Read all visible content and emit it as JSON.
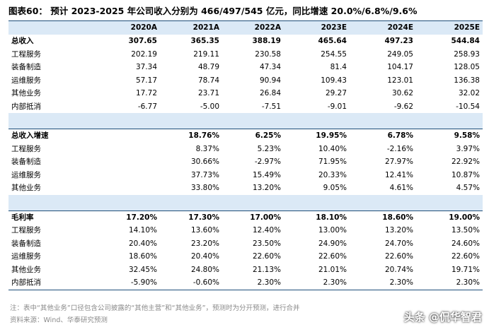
{
  "title": "图表60：  预计 2023-2025 年公司收入分别为 466/497/545 亿元，同比增速 20.0%/6.8%/9.6%",
  "columns": [
    "2020A",
    "2021A",
    "2022A",
    "2023E",
    "2024E",
    "2025E"
  ],
  "revenue": [
    {
      "label": "总收入",
      "bold": true,
      "values": [
        "307.65",
        "365.35",
        "388.19",
        "465.64",
        "497.23",
        "544.84"
      ]
    },
    {
      "label": "工程服务",
      "values": [
        "202.19",
        "219.11",
        "230.58",
        "254.55",
        "249.05",
        "258.93"
      ]
    },
    {
      "label": "装备制造",
      "values": [
        "37.34",
        "48.79",
        "47.34",
        "81.4",
        "104.17",
        "128.05"
      ]
    },
    {
      "label": "运维服务",
      "values": [
        "57.17",
        "78.74",
        "90.94",
        "109.43",
        "123.01",
        "136.38"
      ]
    },
    {
      "label": "其他业务",
      "values": [
        "17.72",
        "23.71",
        "26.84",
        "29.27",
        "30.62",
        "32.02"
      ]
    },
    {
      "label": "内部抵消",
      "values": [
        "-6.77",
        "-5.00",
        "-7.51",
        "-9.01",
        "-9.62",
        "-10.54"
      ]
    }
  ],
  "growth": [
    {
      "label": "总收入增速",
      "bold": true,
      "values": [
        "",
        "18.76%",
        "6.25%",
        "19.95%",
        "6.78%",
        "9.58%"
      ]
    },
    {
      "label": "工程服务",
      "values": [
        "",
        "8.37%",
        "5.23%",
        "10.40%",
        "-2.16%",
        "3.97%"
      ]
    },
    {
      "label": "装备制造",
      "values": [
        "",
        "30.66%",
        "-2.97%",
        "71.95%",
        "27.97%",
        "22.92%"
      ]
    },
    {
      "label": "运维服务",
      "values": [
        "",
        "37.73%",
        "15.49%",
        "20.33%",
        "12.41%",
        "10.87%"
      ]
    },
    {
      "label": "其他业务",
      "values": [
        "",
        "33.80%",
        "13.20%",
        "9.05%",
        "4.61%",
        "4.57%"
      ]
    }
  ],
  "margin": [
    {
      "label": "毛利率",
      "bold": true,
      "values": [
        "17.20%",
        "17.30%",
        "17.00%",
        "18.10%",
        "18.60%",
        "19.00%"
      ]
    },
    {
      "label": "工程服务",
      "values": [
        "14.10%",
        "13.60%",
        "12.40%",
        "13.00%",
        "13.20%",
        "13.50%"
      ]
    },
    {
      "label": "装备制造",
      "values": [
        "20.40%",
        "23.20%",
        "23.50%",
        "24.90%",
        "24.70%",
        "24.60%"
      ]
    },
    {
      "label": "运维服务",
      "values": [
        "18.60%",
        "20.40%",
        "22.60%",
        "22.60%",
        "22.60%",
        "22.60%"
      ]
    },
    {
      "label": "其他业务",
      "values": [
        "32.45%",
        "24.80%",
        "21.13%",
        "21.01%",
        "20.74%",
        "19.71%"
      ]
    },
    {
      "label": "内部抵消",
      "values": [
        "-5.90%",
        "-0.60%",
        "2.30%",
        "2.30%",
        "2.30%",
        "2.30%"
      ]
    }
  ],
  "note": "注：表中“其他业务”口径包含公司披露的“其他主营”和“其他业务”，预测时为分开预测，进行合并",
  "source": "资料来源：Wind、华泰研究预测",
  "watermark": "头条 @侃华智君"
}
